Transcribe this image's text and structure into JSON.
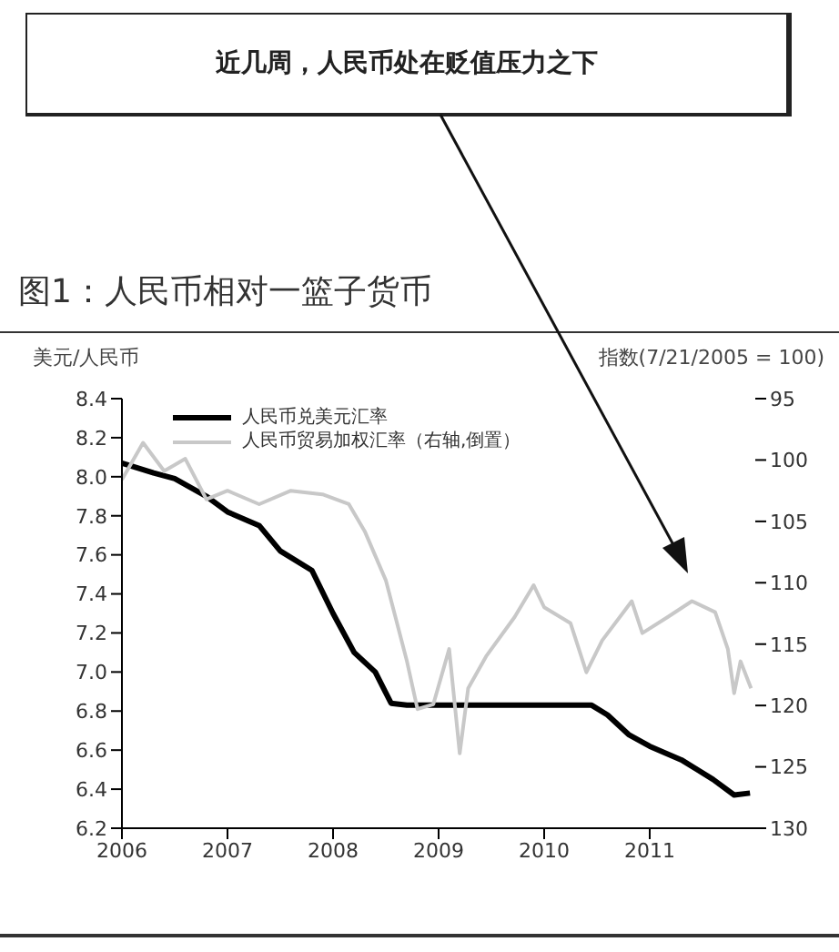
{
  "chart_data": {
    "type": "line",
    "title": "图1：人民币相对一篮子货币",
    "annotations": [
      "近几周，人民币处在贬值压力之下"
    ],
    "ylabel": "美元/人民币",
    "y2label": "指数(7/21/2005 = 100)",
    "xlim": [
      2006,
      2012
    ],
    "xticks": [
      2006,
      2007,
      2008,
      2009,
      2010,
      2011
    ],
    "ylim": [
      6.2,
      8.4
    ],
    "yticks": [
      {
        "value": 6.2,
        "label": "6.2"
      },
      {
        "value": 6.4,
        "label": "6.4"
      },
      {
        "value": 6.6,
        "label": "6.6"
      },
      {
        "value": 6.8,
        "label": "6.8"
      },
      {
        "value": 7,
        "label": "7.0"
      },
      {
        "value": 7.2,
        "label": "7.2"
      },
      {
        "value": 7.4,
        "label": "7.4"
      },
      {
        "value": 7.6,
        "label": "7.6"
      },
      {
        "value": 7.8,
        "label": "7.8"
      },
      {
        "value": 8,
        "label": "8.0"
      },
      {
        "value": 8.2,
        "label": "8.2"
      },
      {
        "value": 8.4,
        "label": "8.4"
      }
    ],
    "y2lim": [
      130,
      95
    ],
    "y2ticks": [
      95,
      100,
      105,
      110,
      115,
      120,
      125,
      130
    ],
    "legend": "top left",
    "marker": "none",
    "line_style": "solid",
    "series": [
      {
        "name": "人民币兑美元汇率",
        "color": "#000000",
        "x": [
          2006,
          2006.3,
          2006.5,
          2006.8,
          2007,
          2007.3,
          2007.5,
          2007.8,
          2008,
          2008.2,
          2008.4,
          2008.55,
          2008.7,
          2009,
          2010,
          2010.45,
          2010.6,
          2010.8,
          2011,
          2011.3,
          2011.6,
          2011.8,
          2011.95
        ],
        "values": [
          8.07,
          8.02,
          7.99,
          7.9,
          7.82,
          7.75,
          7.62,
          7.52,
          7.3,
          7.1,
          7,
          6.84,
          6.83,
          6.83,
          6.83,
          6.83,
          6.78,
          6.68,
          6.62,
          6.55,
          6.45,
          6.37,
          6.38
        ]
      },
      {
        "name": "人民币贸易加权汇率（右轴,倒置）",
        "color": "#c8c8c8",
        "axis": "y2",
        "x": [
          2006,
          2006.2,
          2006.4,
          2006.6,
          2006.8,
          2007,
          2007.3,
          2007.6,
          2007.9,
          2008.15,
          2008.3,
          2008.5,
          2008.7,
          2008.8,
          2008.95,
          2009.1,
          2009.2,
          2009.28,
          2009.45,
          2009.72,
          2009.9,
          2010,
          2010.25,
          2010.4,
          2010.55,
          2010.83,
          2010.93,
          2011.17,
          2011.4,
          2011.62,
          2011.74,
          2011.8,
          2011.86,
          2011.96
        ],
        "values": [
          101.6,
          98.6,
          100.9,
          99.9,
          103.2,
          102.5,
          103.6,
          102.5,
          102.8,
          103.6,
          105.8,
          109.8,
          116.4,
          120.3,
          119.9,
          115.4,
          123.9,
          118.6,
          116,
          112.8,
          110.2,
          112,
          113.3,
          117.3,
          114.7,
          111.5,
          114.1,
          112.8,
          111.5,
          112.4,
          115.4,
          119,
          116.4,
          118.6
        ]
      }
    ]
  }
}
